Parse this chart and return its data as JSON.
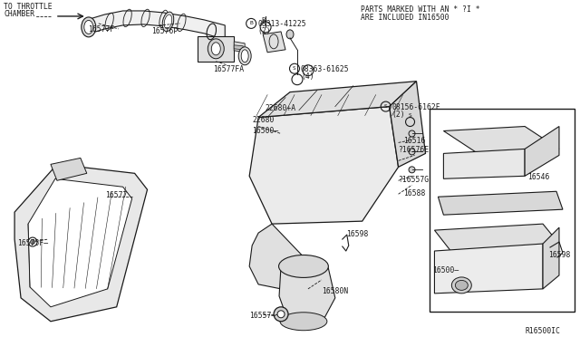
{
  "bg_color": "#ffffff",
  "line_color": "#1a1a1a",
  "text_color": "#1a1a1a",
  "diagram_ref": "R16500IC",
  "note_line1": "PARTS MARKED WITH AN * ?I *",
  "note_line2": "ARE INCLUDED IN16500",
  "throttle_text": "TO THROTTLE\nCHAMBER",
  "figsize": [
    6.4,
    3.72
  ],
  "dpi": 100
}
